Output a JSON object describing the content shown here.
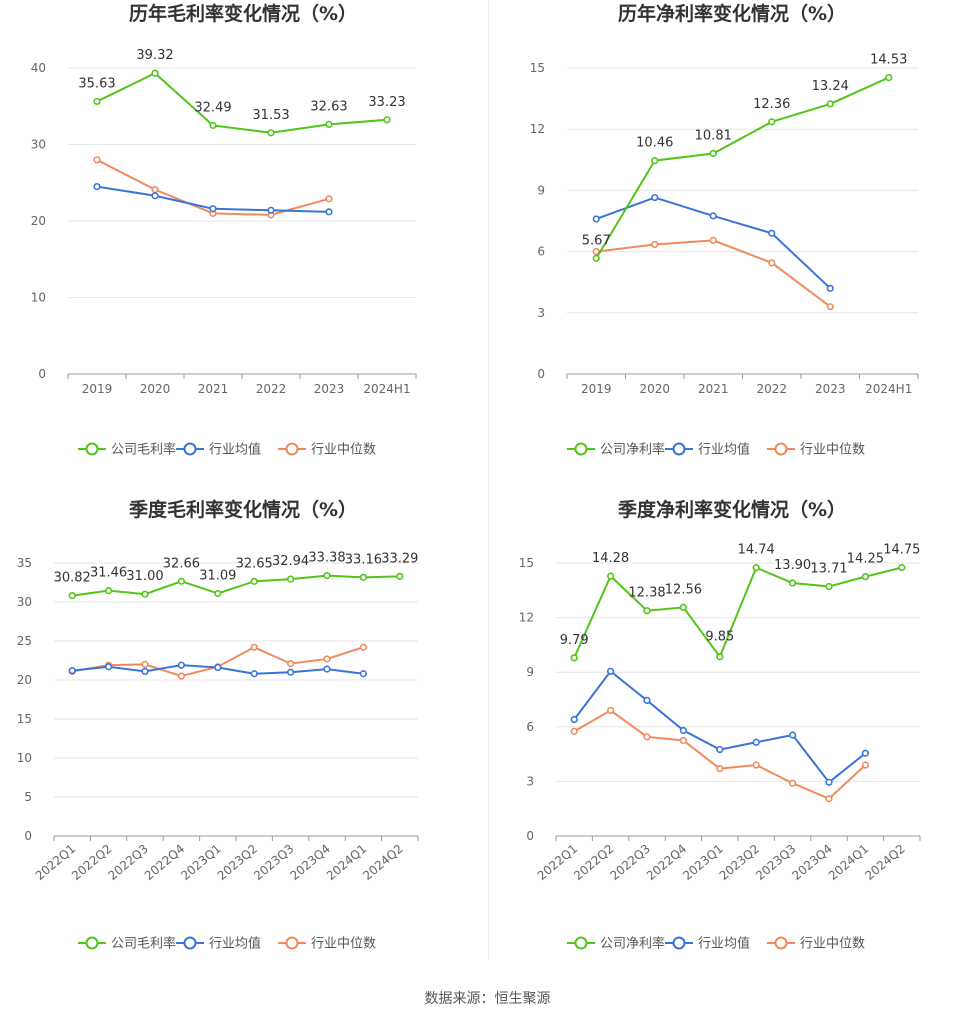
{
  "source": "数据来源：恒生聚源",
  "legend": [
    "公司毛利率",
    "行业均值",
    "行业中位数"
  ],
  "colors": {
    "company": "#52c41a",
    "mean": "#3a74d9",
    "median": "#f08a5d"
  },
  "chart_data": [
    {
      "type": "line",
      "title": "历年毛利率变化情况（%）",
      "categories": [
        "2019",
        "2020",
        "2021",
        "2022",
        "2023",
        "2024H1"
      ],
      "ylim": [
        0,
        40
      ],
      "yticks": [
        0,
        10,
        20,
        30,
        40
      ],
      "legend": [
        "公司毛利率",
        "行业均值",
        "行业中位数"
      ],
      "legend_position": "bottom",
      "series": [
        {
          "name": "公司毛利率",
          "values": [
            35.63,
            39.32,
            32.49,
            31.53,
            32.63,
            33.23
          ],
          "labels": [
            "35.63",
            "39.32",
            "32.49",
            "31.53",
            "32.63",
            "33.23"
          ],
          "color": "#52c41a"
        },
        {
          "name": "行业均值",
          "values": [
            24.5,
            23.3,
            21.6,
            21.4,
            21.2,
            null
          ],
          "color": "#3a74d9"
        },
        {
          "name": "行业中位数",
          "values": [
            28.0,
            24.1,
            21.0,
            20.8,
            22.9,
            null
          ],
          "color": "#f08a5d"
        }
      ]
    },
    {
      "type": "line",
      "title": "历年净利率变化情况（%）",
      "categories": [
        "2019",
        "2020",
        "2021",
        "2022",
        "2023",
        "2024H1"
      ],
      "ylim": [
        0,
        15
      ],
      "yticks": [
        0,
        3,
        6,
        9,
        12,
        15
      ],
      "legend": [
        "公司净利率",
        "行业均值",
        "行业中位数"
      ],
      "legend_position": "bottom",
      "series": [
        {
          "name": "公司净利率",
          "values": [
            5.67,
            10.46,
            10.81,
            12.36,
            13.24,
            14.53
          ],
          "labels": [
            "5.67",
            "10.46",
            "10.81",
            "12.36",
            "13.24",
            "14.53"
          ],
          "color": "#52c41a"
        },
        {
          "name": "行业均值",
          "values": [
            7.6,
            8.65,
            7.75,
            6.9,
            4.2,
            null
          ],
          "color": "#3a74d9"
        },
        {
          "name": "行业中位数",
          "values": [
            6.0,
            6.35,
            6.55,
            5.45,
            3.3,
            null
          ],
          "color": "#f08a5d"
        }
      ]
    },
    {
      "type": "line",
      "title": "季度毛利率变化情况（%）",
      "categories": [
        "2022Q1",
        "2022Q2",
        "2022Q3",
        "2022Q4",
        "2023Q1",
        "2023Q2",
        "2023Q3",
        "2023Q4",
        "2024Q1",
        "2024Q2"
      ],
      "ylim": [
        0,
        35
      ],
      "yticks": [
        0,
        5,
        10,
        15,
        20,
        25,
        30,
        35
      ],
      "legend": [
        "公司毛利率",
        "行业均值",
        "行业中位数"
      ],
      "legend_position": "bottom",
      "series": [
        {
          "name": "公司毛利率",
          "values": [
            30.82,
            31.46,
            31.0,
            32.66,
            31.09,
            32.65,
            32.94,
            33.38,
            33.16,
            33.29
          ],
          "labels": [
            "30.82",
            "31.46",
            "31.00",
            "32.66",
            "31.09",
            "32.65",
            "32.94",
            "33.38",
            "33.16",
            "33.29"
          ],
          "color": "#52c41a"
        },
        {
          "name": "行业均值",
          "values": [
            21.2,
            21.7,
            21.1,
            21.9,
            21.6,
            20.8,
            21.0,
            21.4,
            20.8,
            null
          ],
          "color": "#3a74d9"
        },
        {
          "name": "行业中位数",
          "values": [
            21.1,
            21.9,
            22.0,
            20.5,
            21.7,
            24.2,
            22.1,
            22.7,
            24.2,
            null
          ],
          "color": "#f08a5d"
        }
      ]
    },
    {
      "type": "line",
      "title": "季度净利率变化情况（%）",
      "categories": [
        "2022Q1",
        "2022Q2",
        "2022Q3",
        "2022Q4",
        "2023Q1",
        "2023Q2",
        "2023Q3",
        "2023Q4",
        "2024Q1",
        "2024Q2"
      ],
      "ylim": [
        0,
        15
      ],
      "yticks": [
        0,
        3,
        6,
        9,
        12,
        15
      ],
      "legend": [
        "公司净利率",
        "行业均值",
        "行业中位数"
      ],
      "legend_position": "bottom",
      "series": [
        {
          "name": "公司净利率",
          "values": [
            9.79,
            14.28,
            12.38,
            12.56,
            9.85,
            14.74,
            13.9,
            13.71,
            14.25,
            14.75
          ],
          "labels": [
            "9.79",
            "14.28",
            "12.38",
            "12.56",
            "9.85",
            "14.74",
            "13.90",
            "13.71",
            "14.25",
            "14.75"
          ],
          "color": "#52c41a"
        },
        {
          "name": "行业均值",
          "values": [
            6.4,
            9.05,
            7.45,
            5.8,
            4.75,
            5.15,
            5.55,
            2.95,
            4.55,
            null
          ],
          "color": "#3a74d9"
        },
        {
          "name": "行业中位数",
          "values": [
            5.75,
            6.9,
            5.45,
            5.25,
            3.7,
            3.9,
            2.9,
            2.05,
            3.9,
            null
          ],
          "color": "#f08a5d"
        }
      ]
    }
  ]
}
